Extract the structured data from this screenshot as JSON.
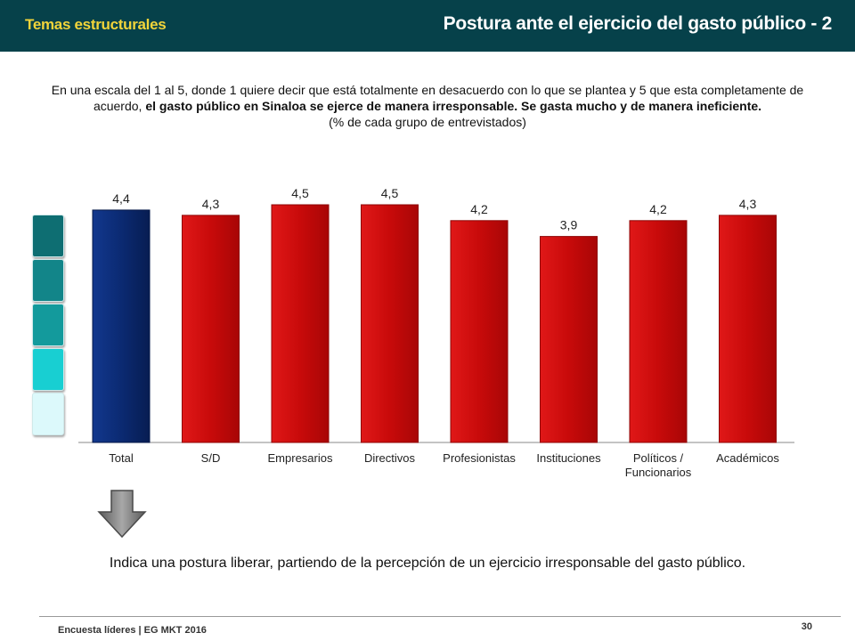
{
  "header": {
    "section": "Temas estructurales",
    "title": "Postura ante el ejercicio del gasto público - 2"
  },
  "intro": {
    "text_plain": "En una escala del 1 al 5, donde 1 quiere decir que está totalmente en desacuerdo con lo que se plantea y 5 que esta completamente de acuerdo, ",
    "text_bold": "el gasto público en Sinaloa se ejerce de manera irresponsable. Se gasta mucho y de manera ineficiente.",
    "note": "(% de cada grupo de entrevistados)"
  },
  "chart_data": {
    "type": "bar",
    "categories": [
      "Total",
      "S/D",
      "Empresarios",
      "Directivos",
      "Profesionistas",
      "Instituciones",
      "Políticos / Funcionarios",
      "Académicos"
    ],
    "values": [
      4.4,
      4.3,
      4.5,
      4.5,
      4.2,
      3.9,
      4.2,
      4.3
    ],
    "value_labels": [
      "4,4",
      "4,3",
      "4,5",
      "4,5",
      "4,2",
      "3,9",
      "4,2",
      "4,3"
    ],
    "category_label_lines": [
      [
        "Total"
      ],
      [
        "S/D"
      ],
      [
        "Empresarios"
      ],
      [
        "Directivos"
      ],
      [
        "Profesionistas"
      ],
      [
        "Instituciones"
      ],
      [
        "Políticos /",
        "Funcionarios"
      ],
      [
        "Académicos"
      ]
    ],
    "colors": [
      "#0b2a72",
      "#cc0e0e",
      "#cc0e0e",
      "#cc0e0e",
      "#cc0e0e",
      "#cc0e0e",
      "#cc0e0e",
      "#cc0e0e"
    ],
    "ylim": [
      0,
      5
    ],
    "grid": false,
    "legend": "none"
  },
  "scale": {
    "colors": [
      "#0e6e72",
      "#128589",
      "#139a9c",
      "#18cfd2",
      "#dcf9fb"
    ]
  },
  "conclusion": "Indica una postura liberar, partiendo de la percepción de un ejercicio irresponsable del gasto público.",
  "footer": {
    "left": "Encuesta líderes | EG MKT 2016",
    "page": "30"
  }
}
